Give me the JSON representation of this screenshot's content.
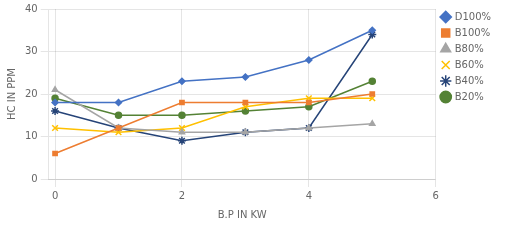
{
  "chart_data": {
    "type": "line",
    "xlabel": "B.P IN KW",
    "ylabel": "HC IN PPM",
    "x": [
      0,
      1,
      2,
      3,
      4,
      5
    ],
    "series": [
      {
        "name": "D100%",
        "color": "#4472C4",
        "marker": "diamond",
        "values": [
          18,
          18,
          23,
          24,
          28,
          35
        ]
      },
      {
        "name": "B100%",
        "color": "#ED7D31",
        "marker": "square",
        "values": [
          6,
          12,
          18,
          18,
          18,
          20
        ]
      },
      {
        "name": "B80%",
        "color": "#A5A5A5",
        "marker": "triangle",
        "values": [
          21,
          12,
          11,
          11,
          12,
          13
        ]
      },
      {
        "name": "B60%",
        "color": "#FFC000",
        "marker": "x",
        "values": [
          12,
          11,
          12,
          17,
          19,
          19
        ]
      },
      {
        "name": "B40%",
        "color": "#264478",
        "marker": "star",
        "values": [
          16,
          12,
          9,
          11,
          12,
          34
        ]
      },
      {
        "name": "B20%",
        "color": "#548235",
        "marker": "circle",
        "values": [
          19,
          15,
          15,
          16,
          17,
          23
        ]
      }
    ],
    "xlim": [
      -0.1,
      6
    ],
    "ylim": [
      0,
      40
    ],
    "xticks": [
      0,
      2,
      4,
      6
    ],
    "yticks": [
      0,
      10,
      20,
      30,
      40
    ],
    "grid": true,
    "legend": "right"
  }
}
